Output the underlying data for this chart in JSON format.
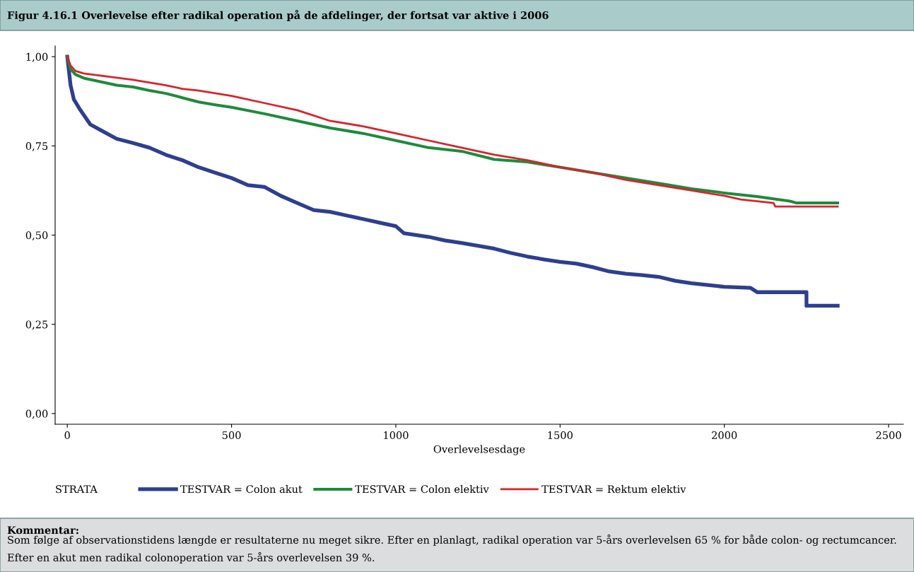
{
  "chart_data": {
    "type": "line",
    "title": "Figur 4.16.1 Overlevelse efter radikal operation på de afdelinger, der fortsat var aktive i 2006",
    "xlabel": "Overlevelsesdage",
    "legend_title": "STRATA",
    "legend": "bottom",
    "grid": false,
    "marker": "none",
    "line_style": "solid",
    "xlim": [
      -37,
      2545
    ],
    "xticks": [
      0,
      500,
      1000,
      1500,
      2000,
      2500
    ],
    "ylim": [
      -0.03,
      1.03
    ],
    "yticks": [
      {
        "value": 0,
        "label": "0,00"
      },
      {
        "value": 0.25,
        "label": "0,25"
      },
      {
        "value": 0.5,
        "label": "0,50"
      },
      {
        "value": 0.75,
        "label": "0,75"
      },
      {
        "value": 1,
        "label": "1,00"
      }
    ],
    "series": [
      {
        "name": "TESTVAR = Colon akut",
        "color": "#2e3f8f",
        "x": [
          0,
          5,
          10,
          20,
          40,
          70,
          100,
          150,
          200,
          250,
          300,
          350,
          400,
          450,
          500,
          550,
          600,
          650,
          700,
          750,
          800,
          850,
          900,
          950,
          1000,
          1025,
          1100,
          1150,
          1200,
          1250,
          1300,
          1350,
          1400,
          1450,
          1500,
          1550,
          1600,
          1650,
          1700,
          1750,
          1800,
          1850,
          1900,
          1950,
          2000,
          2080,
          2100,
          2250,
          2250,
          2345
        ],
        "values": [
          1.0,
          0.96,
          0.92,
          0.88,
          0.85,
          0.81,
          0.795,
          0.77,
          0.758,
          0.745,
          0.725,
          0.71,
          0.69,
          0.675,
          0.66,
          0.64,
          0.635,
          0.61,
          0.59,
          0.57,
          0.565,
          0.555,
          0.545,
          0.535,
          0.525,
          0.505,
          0.495,
          0.485,
          0.478,
          0.47,
          0.462,
          0.45,
          0.44,
          0.432,
          0.425,
          0.42,
          0.41,
          0.398,
          0.392,
          0.388,
          0.383,
          0.372,
          0.365,
          0.36,
          0.355,
          0.352,
          0.34,
          0.34,
          0.302,
          0.302
        ]
      },
      {
        "name": "TESTVAR = Colon elektiv",
        "color": "#1f8a3c",
        "x": [
          0,
          10,
          25,
          50,
          100,
          150,
          200,
          250,
          300,
          350,
          400,
          450,
          500,
          600,
          700,
          800,
          900,
          1000,
          1100,
          1200,
          1300,
          1400,
          1500,
          1600,
          1700,
          1800,
          1900,
          2000,
          2100,
          2200,
          2220,
          2345
        ],
        "values": [
          1.0,
          0.965,
          0.95,
          0.94,
          0.93,
          0.92,
          0.915,
          0.905,
          0.897,
          0.885,
          0.873,
          0.865,
          0.858,
          0.84,
          0.82,
          0.8,
          0.785,
          0.765,
          0.745,
          0.735,
          0.712,
          0.705,
          0.69,
          0.675,
          0.66,
          0.645,
          0.63,
          0.618,
          0.608,
          0.595,
          0.59,
          0.59
        ]
      },
      {
        "name": "TESTVAR = Rektum elektiv",
        "color": "#d9232d",
        "x": [
          0,
          10,
          25,
          50,
          100,
          200,
          300,
          350,
          400,
          500,
          600,
          700,
          800,
          900,
          1000,
          1100,
          1200,
          1300,
          1400,
          1500,
          1600,
          1700,
          1800,
          1900,
          2000,
          2050,
          2100,
          2150,
          2155,
          2345
        ],
        "values": [
          1.0,
          0.975,
          0.96,
          0.953,
          0.947,
          0.935,
          0.92,
          0.91,
          0.905,
          0.89,
          0.87,
          0.85,
          0.82,
          0.805,
          0.785,
          0.765,
          0.745,
          0.725,
          0.71,
          0.69,
          0.675,
          0.655,
          0.64,
          0.625,
          0.61,
          0.6,
          0.595,
          0.59,
          0.58,
          0.58
        ]
      }
    ],
    "annotations": [
      "Kommentar:",
      "Som følge af observationstidens længde er resultaterne nu meget sikre. Efter en planlagt, radikal operation var 5-års overlevelsen 65 % for både colon- og rectumcancer. Efter en akut men radikal colonoperation var 5-års overlevelsen 39 %."
    ]
  }
}
